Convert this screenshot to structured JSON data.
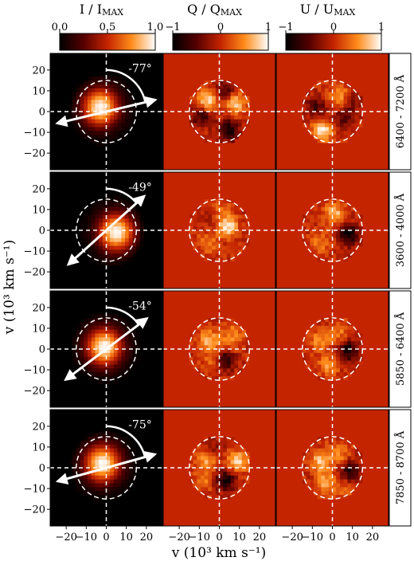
{
  "chart_data": {
    "type": "heatmap",
    "xlabel": "v (10³ km s⁻¹)",
    "ylabel": "v (10³ km s⁻¹)",
    "x_ticks": [
      "−20",
      "−10",
      "0",
      "10",
      "20"
    ],
    "y_ticks": [
      "20",
      "10",
      "0",
      "−10",
      "−20"
    ],
    "xlim": [
      -28,
      28
    ],
    "ylim": [
      -28,
      28
    ],
    "circle_radius": 15,
    "columns": [
      {
        "id": "I",
        "title_main": "I / I",
        "title_sub": "MAX",
        "cbar_ticks": [
          "0.0",
          "0.5",
          "1.0"
        ],
        "cbar_range": [
          0,
          1
        ]
      },
      {
        "id": "Q",
        "title_main": "Q / Q",
        "title_sub": "MAX",
        "cbar_ticks": [
          "−1",
          "0",
          "1"
        ],
        "cbar_range": [
          -1,
          1
        ]
      },
      {
        "id": "U",
        "title_main": "U / U",
        "title_sub": "MAX",
        "cbar_ticks": [
          "−1",
          "0",
          "1"
        ],
        "cbar_range": [
          -1,
          1
        ]
      }
    ],
    "rows": [
      {
        "band": "6400 - 7200 Å",
        "angle_label": "-77°",
        "angle": -77,
        "I_peak": [
          -3,
          2
        ],
        "Q_lobes": [
          [
            -6,
            5,
            0.9
          ],
          [
            8,
            4,
            0.85
          ],
          [
            -9,
            -2,
            -0.7
          ],
          [
            5,
            -9,
            -0.9
          ],
          [
            3,
            10,
            -0.6
          ]
        ],
        "U_lobes": [
          [
            -8,
            2,
            -0.6
          ],
          [
            4,
            7,
            0.7
          ],
          [
            -5,
            -9,
            0.95
          ],
          [
            6,
            -3,
            -0.5
          ],
          [
            9,
            5,
            -0.4
          ]
        ]
      },
      {
        "band": "3600 - 4000 Å",
        "angle_label": "-49°",
        "angle": -49,
        "I_peak": [
          5,
          -1
        ],
        "Q_lobes": [
          [
            4,
            2,
            0.9
          ],
          [
            -6,
            -6,
            0.4
          ],
          [
            0,
            10,
            0.3
          ],
          [
            -4,
            6,
            -0.2
          ]
        ],
        "U_lobes": [
          [
            8,
            -2,
            -0.95
          ],
          [
            1,
            8,
            0.7
          ],
          [
            -6,
            -6,
            0.4
          ]
        ]
      },
      {
        "band": "5850 - 6400 Å",
        "angle_label": "-54°",
        "angle": -54,
        "I_peak": [
          -1,
          1
        ],
        "Q_lobes": [
          [
            -5,
            4,
            0.7
          ],
          [
            -3,
            -6,
            0.4
          ],
          [
            5,
            3,
            0.4
          ],
          [
            3,
            -5,
            -0.8
          ],
          [
            8,
            9,
            0.3
          ]
        ],
        "U_lobes": [
          [
            8,
            -1,
            -0.9
          ],
          [
            -6,
            4,
            0.5
          ],
          [
            3,
            8,
            0.4
          ],
          [
            -2,
            -8,
            0.5
          ]
        ]
      },
      {
        "band": "7850 - 8700 Å",
        "angle_label": "-75°",
        "angle": -75,
        "I_peak": [
          -2,
          2
        ],
        "Q_lobes": [
          [
            -6,
            4,
            0.7
          ],
          [
            9,
            3,
            0.8
          ],
          [
            3,
            -6,
            -0.9
          ],
          [
            -8,
            -6,
            0.4
          ],
          [
            -3,
            9,
            -0.4
          ]
        ],
        "U_lobes": [
          [
            9,
            -2,
            -0.8
          ],
          [
            -6,
            3,
            0.7
          ],
          [
            3,
            7,
            0.5
          ],
          [
            -3,
            -7,
            0.6
          ],
          [
            6,
            -10,
            0.3
          ]
        ]
      }
    ]
  }
}
